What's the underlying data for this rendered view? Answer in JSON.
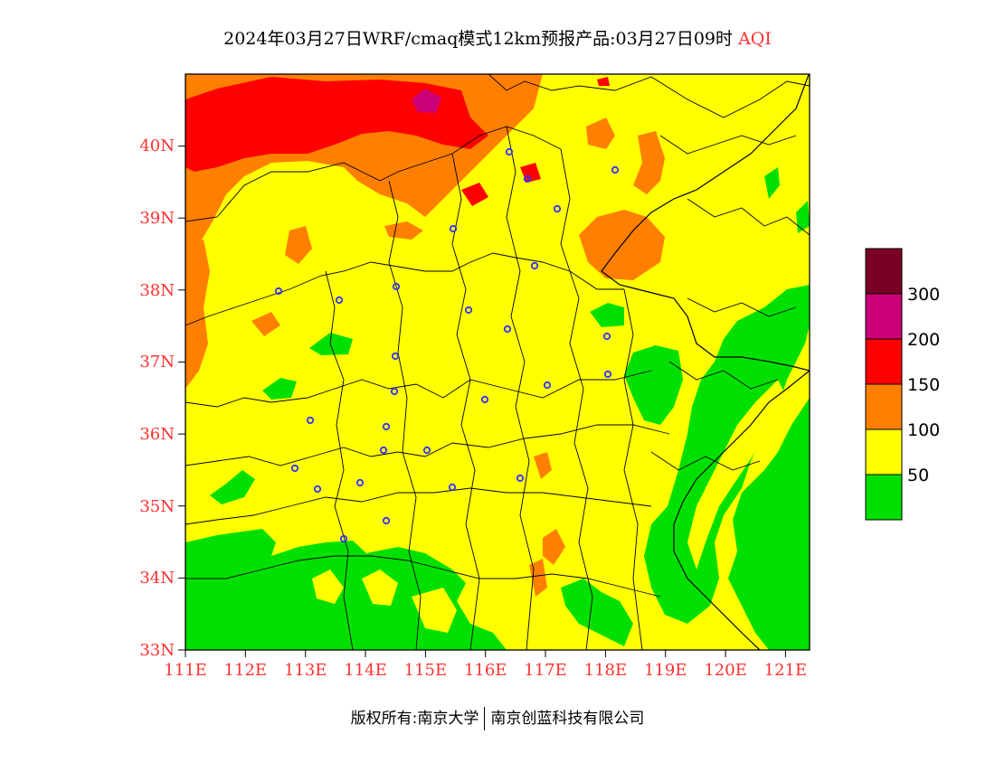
{
  "title": {
    "main": "2024年03月27日WRF/cmaq模式12km预报产品:03月27日09时",
    "variable": "AQI"
  },
  "map": {
    "lon_range": [
      111,
      121.4
    ],
    "lat_range": [
      33,
      41
    ],
    "x_ticks": [
      "111E",
      "112E",
      "113E",
      "114E",
      "115E",
      "116E",
      "117E",
      "118E",
      "119E",
      "120E",
      "121E"
    ],
    "y_ticks": [
      "33N",
      "34N",
      "35N",
      "36N",
      "37N",
      "38N",
      "39N",
      "40N"
    ],
    "tick_color": "#ff3030"
  },
  "legend": {
    "levels": [
      {
        "label": "",
        "color": "#00e000"
      },
      {
        "label": "50",
        "color": "#ffff00"
      },
      {
        "label": "100",
        "color": "#ff7f00"
      },
      {
        "label": "150",
        "color": "#ff0000"
      },
      {
        "label": "200",
        "color": "#cc0077"
      },
      {
        "label": "300",
        "color": "#7a0025"
      }
    ]
  },
  "footer": {
    "copyright": "版权所有:南京大学",
    "company": "南京创蓝科技有限公司"
  }
}
